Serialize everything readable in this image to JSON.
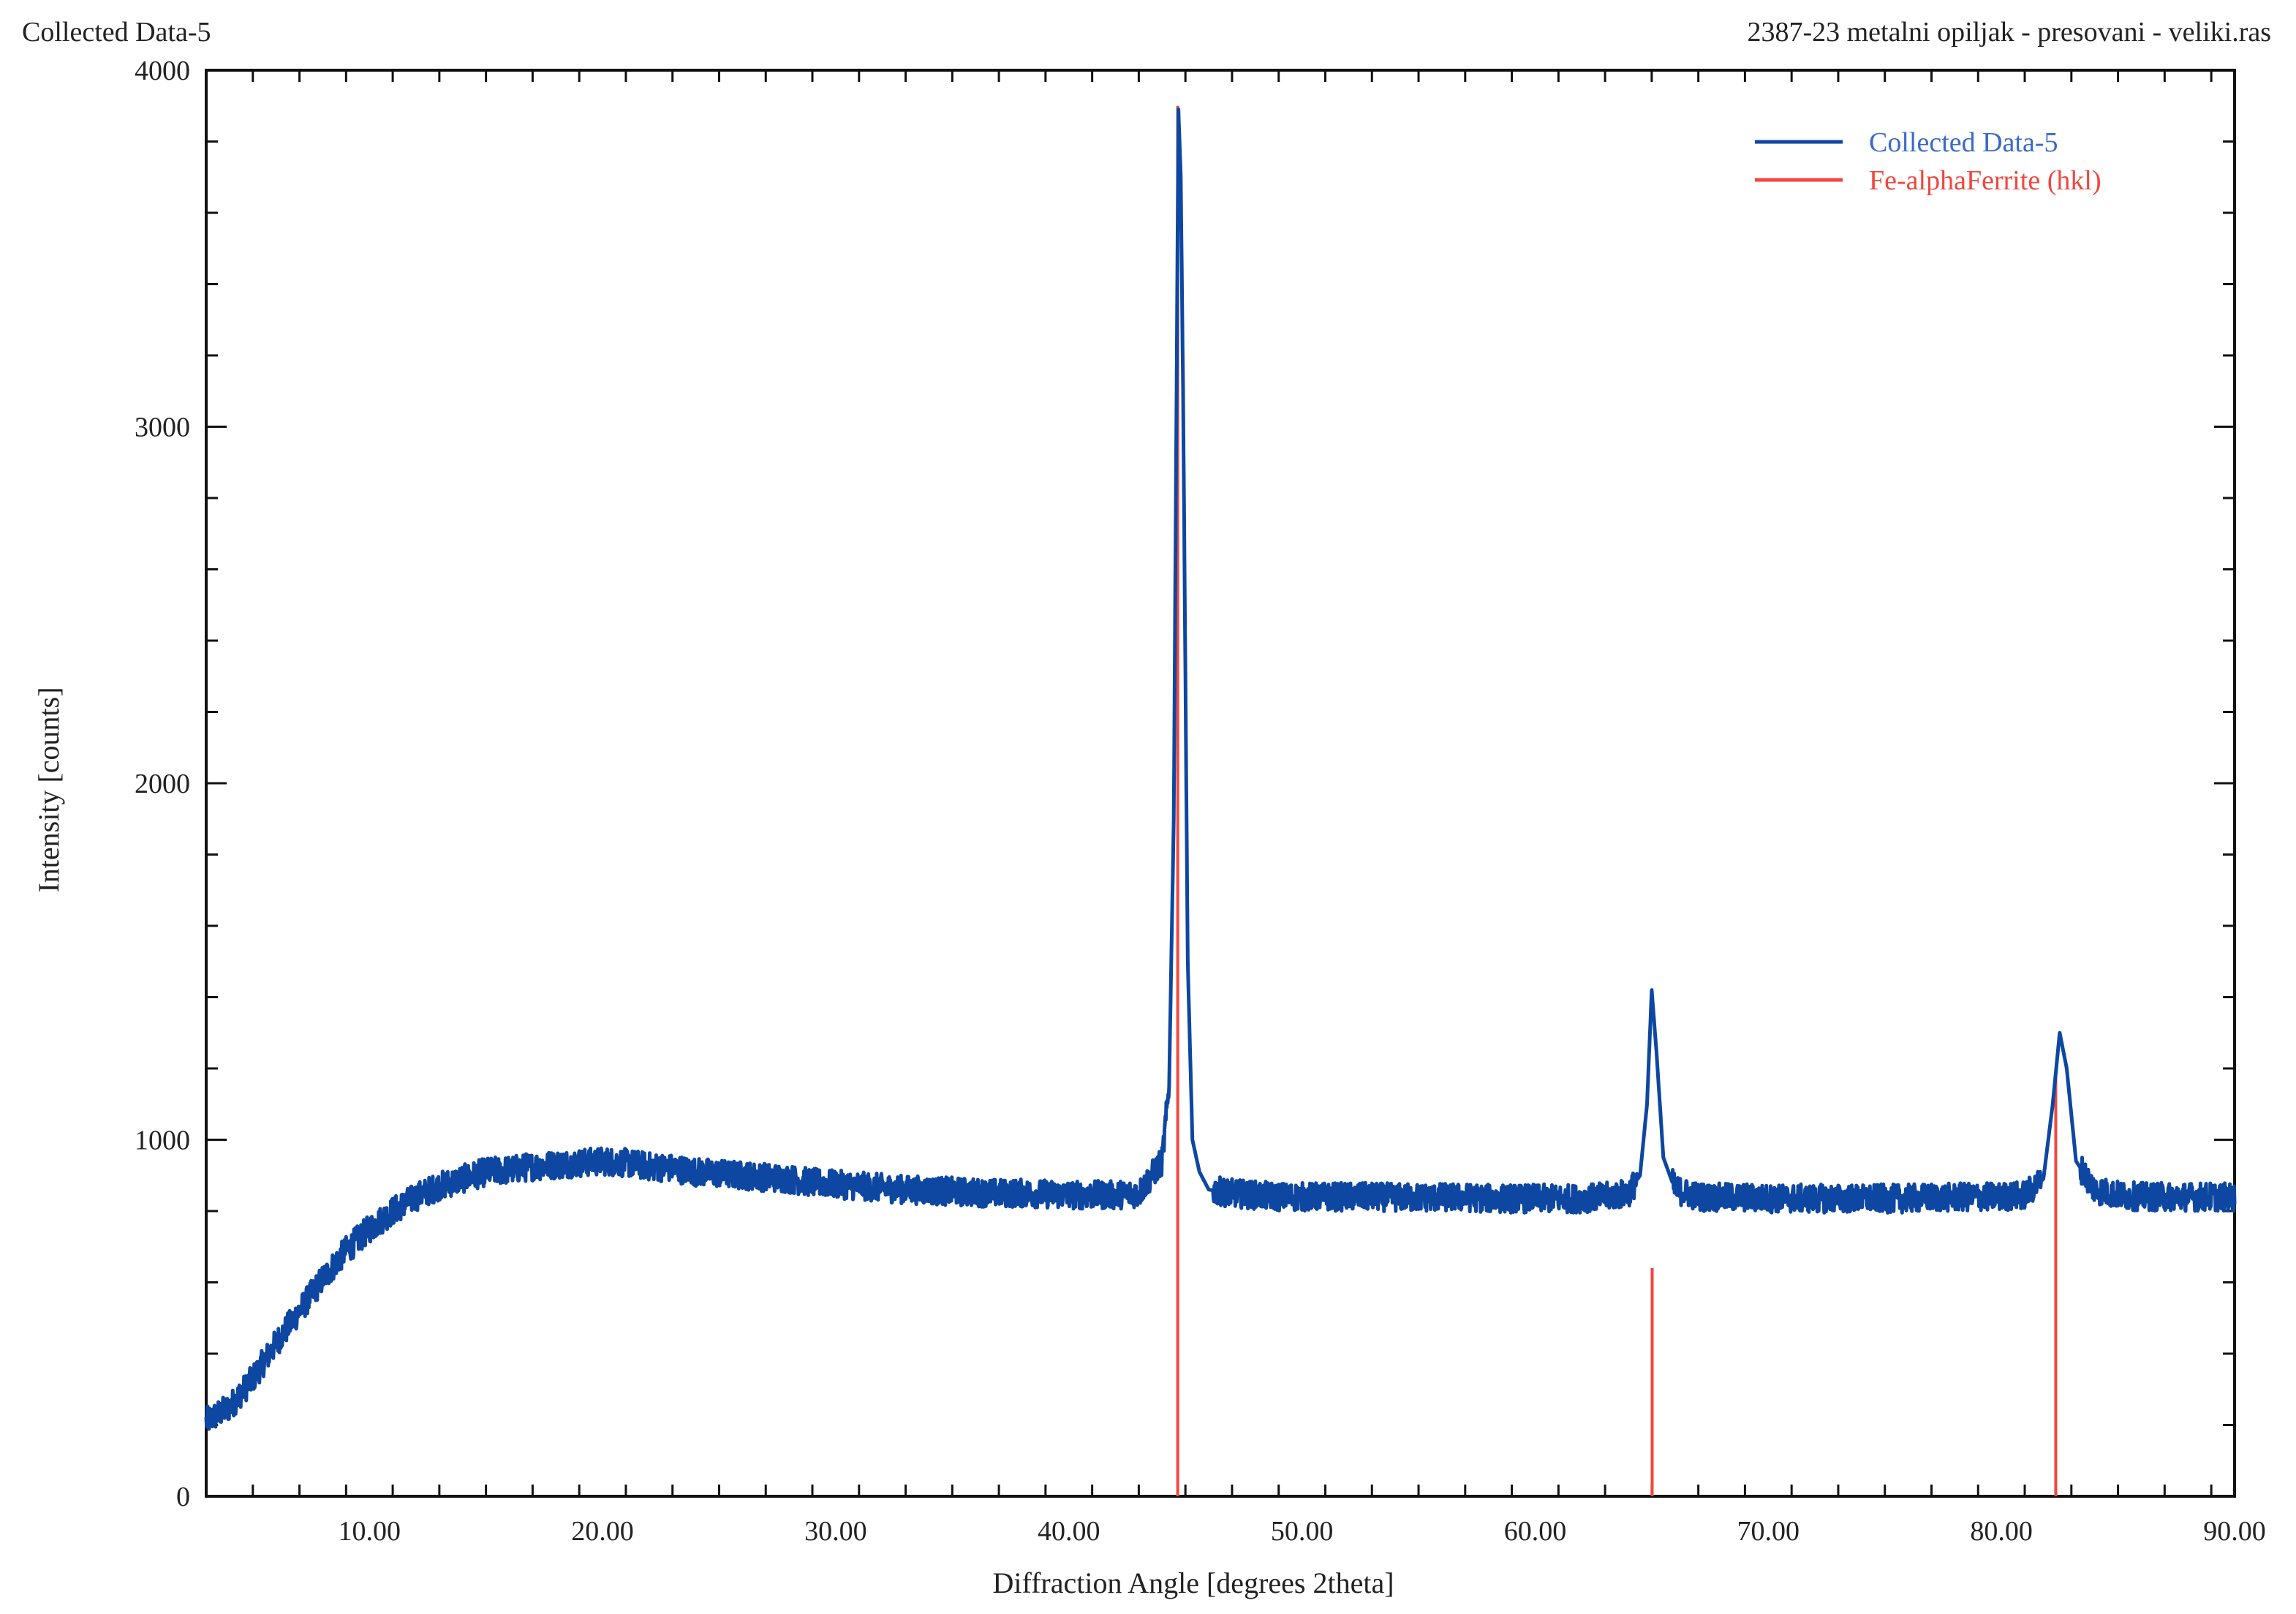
{
  "header": {
    "left": "Collected Data-5",
    "right": "2387-23 metalni opiljak - presovani - veliki.ras"
  },
  "colors": {
    "collected": "#0d47a1",
    "reference": "#f0473f",
    "axis": "#111111"
  },
  "chart_data": {
    "type": "line",
    "xlabel": "Diffraction Angle [degrees 2theta]",
    "ylabel": "Intensity [counts]",
    "xlim": [
      3,
      90
    ],
    "ylim": [
      0,
      4000
    ],
    "x_ticks": [
      10,
      20,
      30,
      40,
      50,
      60,
      70,
      80,
      90
    ],
    "x_tick_labels": [
      "10.00",
      "20.00",
      "30.00",
      "40.00",
      "50.00",
      "60.00",
      "70.00",
      "80.00",
      "90.00"
    ],
    "y_ticks": [
      0,
      1000,
      2000,
      3000,
      4000
    ],
    "y_tick_labels": [
      "0",
      "1000",
      "2000",
      "3000",
      "4000"
    ],
    "grid": false,
    "legend_position": "top-right",
    "series": [
      {
        "name": "Collected Data-5",
        "kind": "line",
        "color": "#0d47a1",
        "x": [
          3,
          4,
          5,
          6,
          7,
          8,
          9,
          10,
          11,
          12,
          13,
          14,
          15,
          16,
          17,
          18,
          19,
          20,
          21,
          22,
          23,
          24,
          25,
          26,
          27,
          28,
          29,
          30,
          31,
          32,
          33,
          34,
          35,
          36,
          37,
          38,
          39,
          40,
          41,
          42,
          43,
          44,
          44.3,
          44.5,
          44.7,
          44.8,
          44.9,
          45.0,
          45.1,
          45.3,
          45.6,
          46,
          47,
          48,
          49,
          50,
          51,
          52,
          53,
          54,
          55,
          56,
          57,
          58,
          59,
          60,
          61,
          62,
          63,
          64,
          64.5,
          64.8,
          65.0,
          65.2,
          65.5,
          66,
          67,
          68,
          69,
          70,
          71,
          72,
          73,
          74,
          75,
          76,
          77,
          78,
          79,
          80,
          81,
          81.8,
          82.2,
          82.5,
          82.8,
          83.2,
          84,
          85,
          86,
          87,
          88,
          89,
          90
        ],
        "y": [
          210,
          250,
          330,
          430,
          520,
          610,
          690,
          750,
          800,
          840,
          870,
          890,
          910,
          915,
          925,
          930,
          935,
          940,
          935,
          925,
          920,
          910,
          905,
          900,
          895,
          890,
          880,
          875,
          870,
          865,
          860,
          858,
          855,
          852,
          850,
          850,
          848,
          845,
          845,
          845,
          850,
          940,
          1150,
          1900,
          3890,
          3700,
          3100,
          2300,
          1500,
          1000,
          910,
          860,
          850,
          845,
          840,
          840,
          840,
          840,
          840,
          838,
          838,
          838,
          838,
          835,
          835,
          835,
          835,
          835,
          840,
          850,
          900,
          1100,
          1420,
          1250,
          950,
          860,
          840,
          838,
          838,
          835,
          835,
          835,
          835,
          835,
          835,
          835,
          838,
          838,
          840,
          840,
          845,
          890,
          1100,
          1300,
          1200,
          940,
          860,
          845,
          840,
          840,
          840,
          840,
          838
        ]
      },
      {
        "name": "Fe-alphaFerrite (hkl)",
        "kind": "sticks",
        "color": "#f0473f",
        "x": [
          44.67,
          65.02,
          82.33
        ],
        "y": [
          3900,
          640,
          1180
        ]
      }
    ]
  }
}
